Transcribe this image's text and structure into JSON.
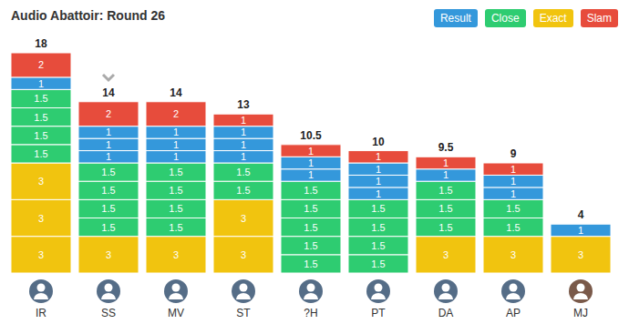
{
  "chart_data": {
    "type": "bar",
    "title": "Audio Abattoir: Round 26",
    "categories": [
      "IR",
      "SS",
      "MV",
      "ST",
      "?H",
      "PT",
      "DA",
      "AP",
      "MJ"
    ],
    "totals": [
      18,
      14,
      14,
      13,
      10.5,
      10,
      9.5,
      9,
      4
    ],
    "series": [
      {
        "name": "Result",
        "color": "#3498db"
      },
      {
        "name": "Close",
        "color": "#2ecc71"
      },
      {
        "name": "Exact",
        "color": "#f1c40f"
      },
      {
        "name": "Slam",
        "color": "#e74c3c"
      }
    ],
    "stacks": [
      [
        {
          "series": "Exact",
          "value": 3
        },
        {
          "series": "Exact",
          "value": 3
        },
        {
          "series": "Exact",
          "value": 3
        },
        {
          "series": "Close",
          "value": 1.5
        },
        {
          "series": "Close",
          "value": 1.5
        },
        {
          "series": "Close",
          "value": 1.5
        },
        {
          "series": "Close",
          "value": 1.5
        },
        {
          "series": "Result",
          "value": 1
        },
        {
          "series": "Slam",
          "value": 2
        }
      ],
      [
        {
          "series": "Exact",
          "value": 3
        },
        {
          "series": "Close",
          "value": 1.5
        },
        {
          "series": "Close",
          "value": 1.5
        },
        {
          "series": "Close",
          "value": 1.5
        },
        {
          "series": "Close",
          "value": 1.5
        },
        {
          "series": "Result",
          "value": 1
        },
        {
          "series": "Result",
          "value": 1
        },
        {
          "series": "Result",
          "value": 1
        },
        {
          "series": "Slam",
          "value": 2
        }
      ],
      [
        {
          "series": "Exact",
          "value": 3
        },
        {
          "series": "Close",
          "value": 1.5
        },
        {
          "series": "Close",
          "value": 1.5
        },
        {
          "series": "Close",
          "value": 1.5
        },
        {
          "series": "Close",
          "value": 1.5
        },
        {
          "series": "Result",
          "value": 1
        },
        {
          "series": "Result",
          "value": 1
        },
        {
          "series": "Result",
          "value": 1
        },
        {
          "series": "Slam",
          "value": 2
        }
      ],
      [
        {
          "series": "Exact",
          "value": 3
        },
        {
          "series": "Exact",
          "value": 3
        },
        {
          "series": "Close",
          "value": 1.5
        },
        {
          "series": "Close",
          "value": 1.5
        },
        {
          "series": "Result",
          "value": 1
        },
        {
          "series": "Result",
          "value": 1
        },
        {
          "series": "Result",
          "value": 1
        },
        {
          "series": "Slam",
          "value": 1
        }
      ],
      [
        {
          "series": "Close",
          "value": 1.5
        },
        {
          "series": "Close",
          "value": 1.5
        },
        {
          "series": "Close",
          "value": 1.5
        },
        {
          "series": "Close",
          "value": 1.5
        },
        {
          "series": "Close",
          "value": 1.5
        },
        {
          "series": "Result",
          "value": 1
        },
        {
          "series": "Result",
          "value": 1
        },
        {
          "series": "Slam",
          "value": 1
        }
      ],
      [
        {
          "series": "Close",
          "value": 1.5
        },
        {
          "series": "Close",
          "value": 1.5
        },
        {
          "series": "Close",
          "value": 1.5
        },
        {
          "series": "Close",
          "value": 1.5
        },
        {
          "series": "Result",
          "value": 1
        },
        {
          "series": "Result",
          "value": 1
        },
        {
          "series": "Result",
          "value": 1
        },
        {
          "series": "Slam",
          "value": 1
        }
      ],
      [
        {
          "series": "Exact",
          "value": 3
        },
        {
          "series": "Close",
          "value": 1.5
        },
        {
          "series": "Close",
          "value": 1.5
        },
        {
          "series": "Close",
          "value": 1.5
        },
        {
          "series": "Result",
          "value": 1
        },
        {
          "series": "Slam",
          "value": 1
        }
      ],
      [
        {
          "series": "Exact",
          "value": 3
        },
        {
          "series": "Close",
          "value": 1.5
        },
        {
          "series": "Close",
          "value": 1.5
        },
        {
          "series": "Result",
          "value": 1
        },
        {
          "series": "Result",
          "value": 1
        },
        {
          "series": "Slam",
          "value": 1
        }
      ],
      [
        {
          "series": "Exact",
          "value": 3
        },
        {
          "series": "Result",
          "value": 1
        }
      ]
    ],
    "ylim": [
      0,
      18
    ],
    "yticks": [
      0,
      18
    ],
    "stacked": true,
    "data_labels": true,
    "tick_labels": "x",
    "grid": false,
    "legend": "top right"
  }
}
